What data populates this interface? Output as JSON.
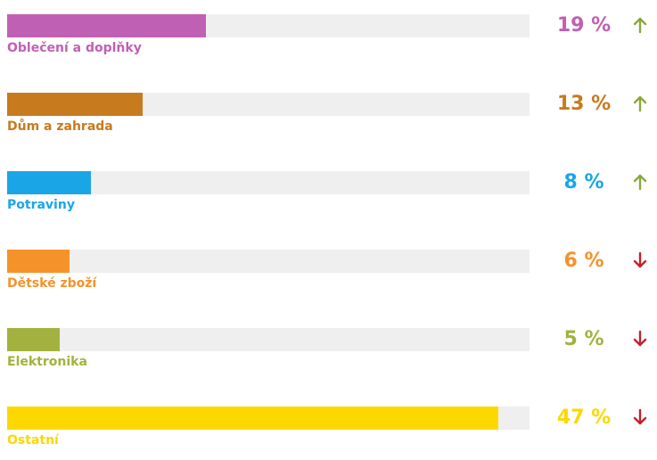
{
  "chart_data": {
    "type": "bar",
    "orientation": "horizontal",
    "xlim": [
      0,
      50
    ],
    "grid": false,
    "legend": "none",
    "categories": [
      "Oblečení a doplňky",
      "Dům a zahrada",
      "Potraviny",
      "Dětské zboží",
      "Elektronika",
      "Ostatní"
    ],
    "values": [
      19,
      13,
      8,
      6,
      5,
      47
    ],
    "value_labels": [
      "19 %",
      "13 %",
      "8 %",
      "6 %",
      "5 %",
      "47 %"
    ],
    "trends": [
      "up",
      "up",
      "up",
      "down",
      "down",
      "down"
    ],
    "colors": [
      "#c060b4",
      "#c87a1e",
      "#1aa6e6",
      "#f5922a",
      "#a3b23e",
      "#fcd800"
    ],
    "trend_icons": {
      "up": "arrow-up-icon",
      "down": "arrow-down-icon"
    },
    "trend_colors": {
      "up": "#8aa83a",
      "down": "#c3222a"
    },
    "track_color": "#efefef"
  }
}
